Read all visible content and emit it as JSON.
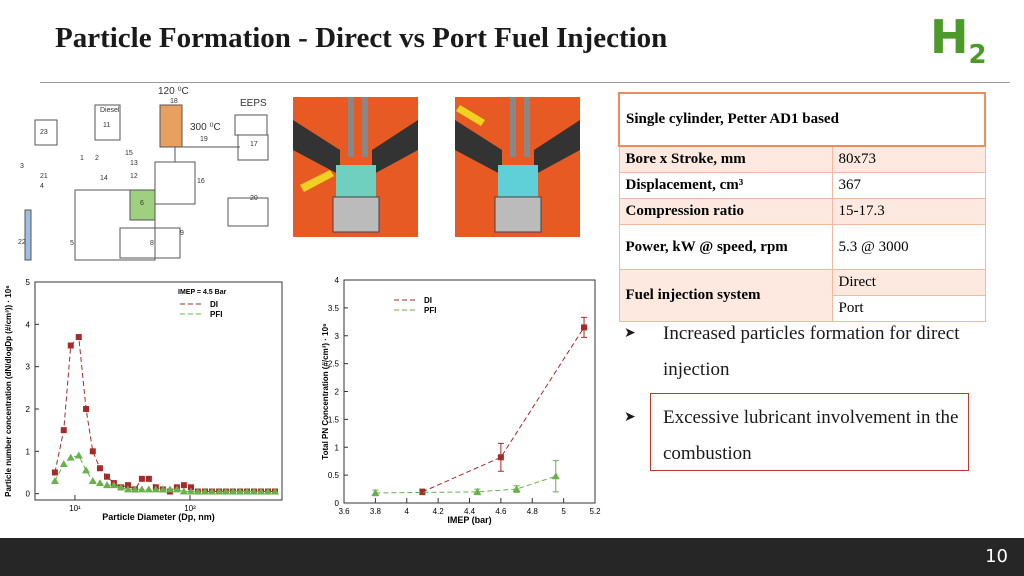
{
  "header": {
    "title": "Particle Formation - Direct vs Port Fuel Injection",
    "logo": "H",
    "logo_sub": "2"
  },
  "schematic": {
    "labels": [
      "120 ⁰C",
      "EEPS",
      "300 ⁰C",
      "Diesel",
      "11",
      "18",
      "19",
      "17",
      "23",
      "20",
      "16",
      "6",
      "8",
      "9",
      "1",
      "2",
      "3",
      "4",
      "5",
      "12",
      "13",
      "14",
      "15",
      "21",
      "22"
    ]
  },
  "table": {
    "header": "Single cylinder, Petter AD1 based",
    "rows": [
      [
        "Bore x Stroke, mm",
        "80x73"
      ],
      [
        "Displacement, cm³",
        "367"
      ],
      [
        "Compression ratio",
        "15-17.3"
      ],
      [
        "Power, kW @ speed, rpm",
        "5.3 @ 3000"
      ],
      [
        "Fuel injection system",
        "Direct",
        "Port"
      ]
    ]
  },
  "bullets": [
    "Increased particles formation for direct injection",
    "Excessive lubricant involvement in the combustion"
  ],
  "page_number": "10",
  "chart_data": [
    {
      "type": "line",
      "x_label": "Particle Diameter (Dp, nm)",
      "y_label": "Particle number concentration (dN/dlogDp (#/cm³)) · 10⁶",
      "legend_title": "IMEP = 4.5 Bar",
      "log_x": true,
      "xlim": [
        4.5,
        630
      ],
      "xticks": [
        {
          "value": 10,
          "label": "10¹"
        },
        {
          "value": 100,
          "label": "10²"
        }
      ],
      "ylim": [
        -0.15,
        5
      ],
      "yticks": [
        0,
        1,
        2,
        3,
        4,
        5
      ],
      "x": [
        6.7,
        8.0,
        9.2,
        10.8,
        12.5,
        14.3,
        16.5,
        19.0,
        21.8,
        25.1,
        28.9,
        33.2,
        38.2,
        43.9,
        50.5,
        58.1,
        66.9,
        76.9,
        88.5,
        102,
        117,
        135,
        155,
        179,
        205,
        236,
        272,
        313,
        360,
        414,
        476,
        548
      ],
      "series": [
        {
          "name": "DI",
          "color": "#a52a2a",
          "values": [
            0.5,
            1.5,
            3.5,
            3.7,
            2.0,
            1.0,
            0.6,
            0.4,
            0.25,
            0.15,
            0.2,
            0.1,
            0.35,
            0.35,
            0.15,
            0.1,
            0.05,
            0.15,
            0.2,
            0.15,
            0.05,
            0.05,
            0.05,
            0.05,
            0.05,
            0.05,
            0.05,
            0.05,
            0.05,
            0.05,
            0.05,
            0.05
          ]
        },
        {
          "name": "PFI",
          "color": "#6ab04c",
          "values": [
            0.3,
            0.7,
            0.85,
            0.9,
            0.55,
            0.3,
            0.25,
            0.2,
            0.2,
            0.15,
            0.1,
            0.1,
            0.1,
            0.1,
            0.1,
            0.1,
            0.1,
            0.1,
            0.05,
            0.05,
            0.05,
            0.05,
            0.05,
            0.05,
            0.05,
            0.05,
            0.05,
            0.05,
            0.05,
            0.05,
            0.05,
            0.05
          ]
        }
      ]
    },
    {
      "type": "scatter",
      "x_label": "IMEP (bar)",
      "y_label": "Total PN Concentration (#/cm³) · 10⁶",
      "xlim": [
        3.6,
        5.2
      ],
      "xticks": [
        3.6,
        3.8,
        4,
        4.2,
        4.4,
        4.6,
        4.8,
        5,
        5.2
      ],
      "ylim": [
        0,
        4
      ],
      "yticks": [
        0,
        0.5,
        1,
        1.5,
        2,
        2.5,
        3,
        3.5,
        4
      ],
      "series": [
        {
          "name": "DI",
          "color": "#a52a2a",
          "x": [
            4.1,
            4.6,
            5.13
          ],
          "values": [
            0.2,
            0.82,
            3.15
          ],
          "errors": [
            0.05,
            0.25,
            0.18
          ]
        },
        {
          "name": "PFI",
          "color": "#6ab04c",
          "x": [
            3.8,
            4.45,
            4.7,
            4.95
          ],
          "values": [
            0.18,
            0.2,
            0.25,
            0.48
          ],
          "errors": [
            0.05,
            0.05,
            0.06,
            0.28
          ]
        }
      ]
    }
  ]
}
